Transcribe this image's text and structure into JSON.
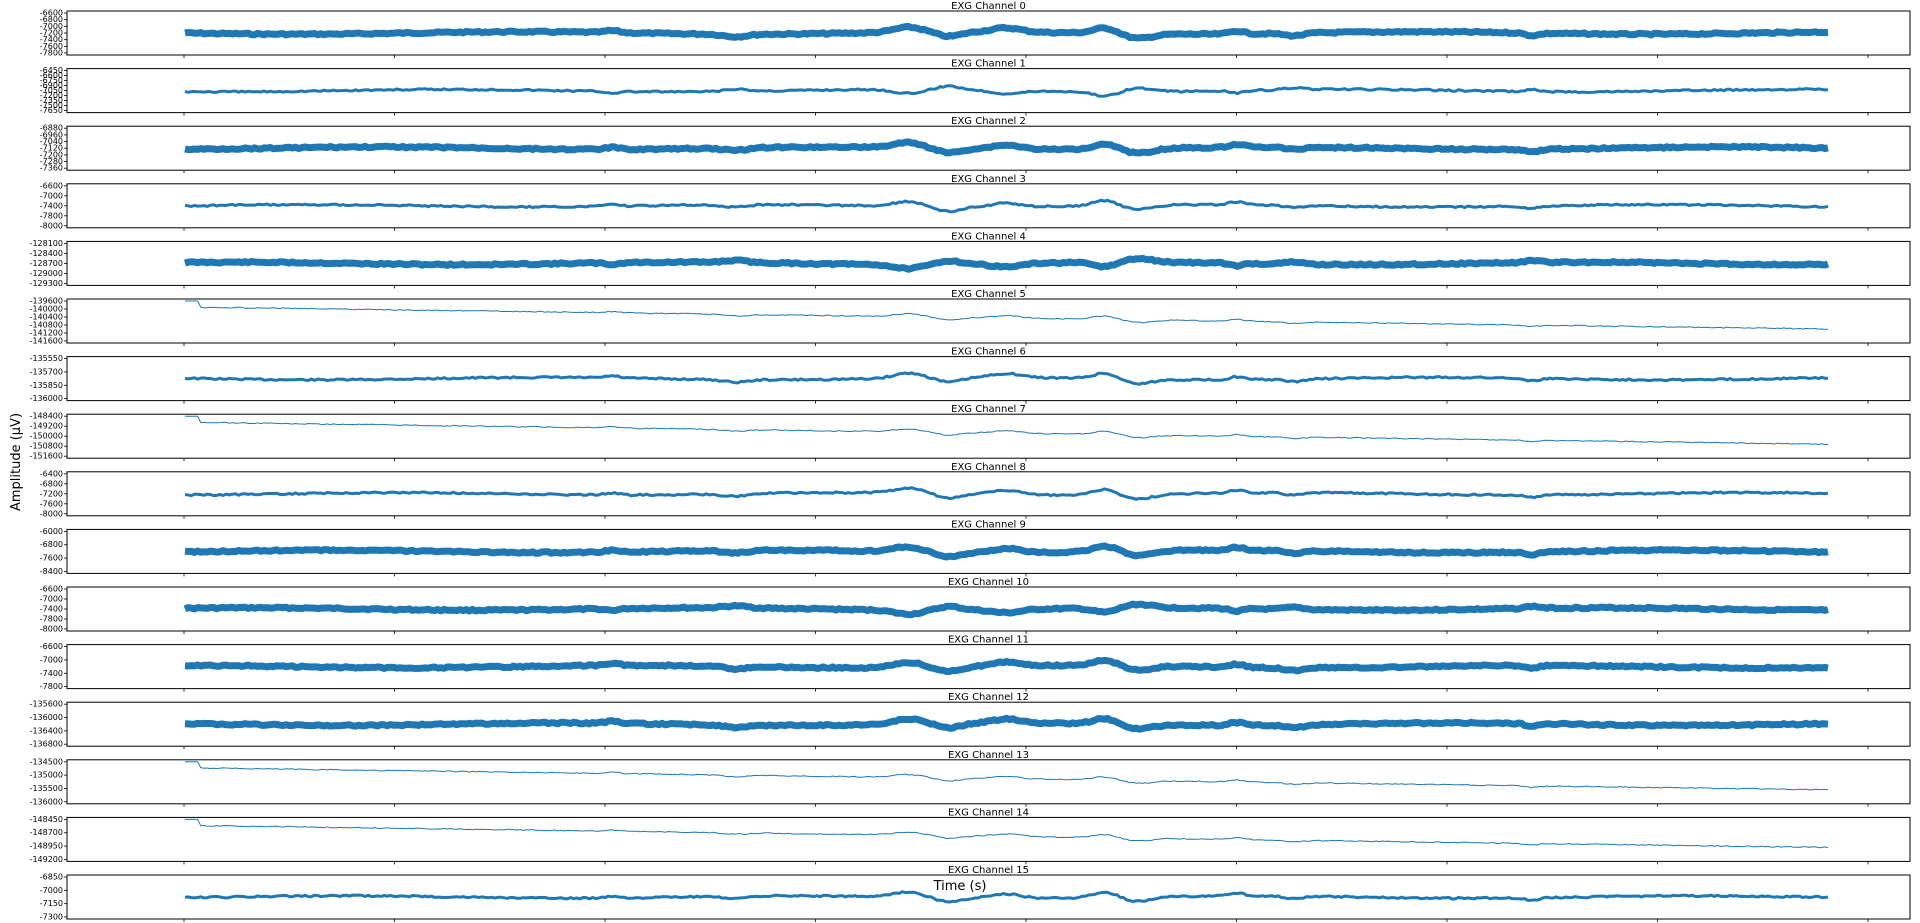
{
  "figure": {
    "ylabel": "Amplitude (µV)",
    "xlabel": "Time (s)"
  },
  "chart_data": {
    "type": "line",
    "series_color": "#1f77b4",
    "x_ticks_count": 10,
    "panels": [
      {
        "title": "EXG Channel 0",
        "yticks": [
          "-6600",
          "-6800",
          "-7000",
          "-7200",
          "-7400",
          "-7600",
          "-7800"
        ]
      },
      {
        "title": "EXG Channel 1",
        "yticks": [
          "-6450",
          "-6600",
          "-6750",
          "-6900",
          "-7050",
          "-7200",
          "-7350",
          "-7500",
          "-7650"
        ]
      },
      {
        "title": "EXG Channel 2",
        "yticks": [
          "-6880",
          "-6960",
          "-7040",
          "-7120",
          "-7200",
          "-7280",
          "-7360"
        ]
      },
      {
        "title": "EXG Channel 3",
        "yticks": [
          "-6600",
          "-7000",
          "-7400",
          "-7800",
          "-8000"
        ]
      },
      {
        "title": "EXG Channel 4",
        "yticks": [
          "-128100",
          "-128400",
          "-128700",
          "-129000",
          "-129300"
        ]
      },
      {
        "title": "EXG Channel 5",
        "yticks": [
          "-139600",
          "-140000",
          "-140400",
          "-140800",
          "-141200",
          "-141600"
        ]
      },
      {
        "title": "EXG Channel 6",
        "yticks": [
          "-135550",
          "-135700",
          "-135850",
          "-136000"
        ]
      },
      {
        "title": "EXG Channel 7",
        "yticks": [
          "-148400",
          "-149200",
          "-150000",
          "-150800",
          "-151600"
        ]
      },
      {
        "title": "EXG Channel 8",
        "yticks": [
          "-6400",
          "-6800",
          "-7200",
          "-7600",
          "-8000"
        ]
      },
      {
        "title": "EXG Channel 9",
        "yticks": [
          "-6000",
          "-6800",
          "-7600",
          "-8400"
        ]
      },
      {
        "title": "EXG Channel 10",
        "yticks": [
          "-6600",
          "-7000",
          "-7400",
          "-7800",
          "-8000"
        ]
      },
      {
        "title": "EXG Channel 11",
        "yticks": [
          "-6600",
          "-7000",
          "-7400",
          "-7800"
        ]
      },
      {
        "title": "EXG Channel 12",
        "yticks": [
          "-135600",
          "-136000",
          "-136400",
          "-136800"
        ]
      },
      {
        "title": "EXG Channel 13",
        "yticks": [
          "-134500",
          "-135000",
          "-135500",
          "-136000"
        ]
      },
      {
        "title": "EXG Channel 14",
        "yticks": [
          "-148450",
          "-148700",
          "-148950",
          "-149200"
        ]
      },
      {
        "title": "EXG Channel 15",
        "yticks": [
          "-6850",
          "-7000",
          "-7150",
          "-7300"
        ]
      }
    ]
  }
}
